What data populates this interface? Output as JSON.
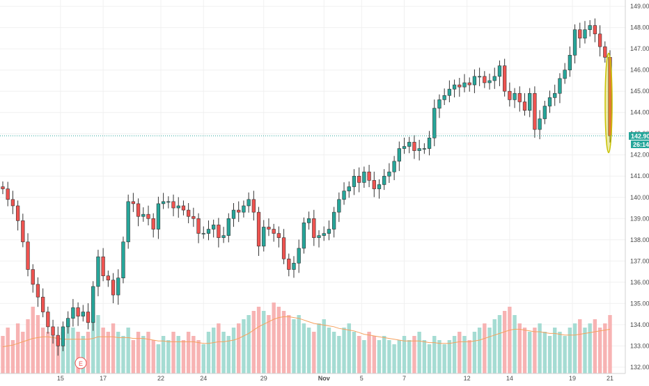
{
  "chart_data": {
    "type": "candlestick",
    "y_range": [
      131.7,
      149.3
    ],
    "y_ticks": [
      "132.00",
      "133.00",
      "134.00",
      "135.00",
      "136.00",
      "137.00",
      "138.00",
      "139.00",
      "140.00",
      "141.00",
      "142.00",
      "143.00",
      "144.00",
      "145.00",
      "146.00",
      "147.00",
      "148.00",
      "149.00"
    ],
    "x_ticks": [
      "15",
      "17",
      "22",
      "24",
      "29",
      "Nov",
      "5",
      "7",
      "12",
      "14",
      "19",
      "21"
    ],
    "current_price": "142.90",
    "countdown": "26:14",
    "earnings_marker": "E",
    "colors": {
      "up": "#26a69a",
      "down": "#ef5350",
      "volume_up": "#a5dcd3",
      "volume_down": "#f7b3b3",
      "ma_line": "#f5a05c",
      "price_line": "#26a69a",
      "highlight": "#c8c200"
    },
    "closes": [
      140.4,
      139.9,
      139.6,
      138.9,
      137.9,
      136.6,
      135.9,
      135.3,
      134.6,
      133.9,
      133.5,
      133.0,
      133.9,
      134.3,
      134.8,
      134.4,
      134.6,
      134.1,
      135.8,
      137.2,
      136.3,
      136.1,
      135.4,
      136.2,
      137.9,
      139.8,
      139.7,
      139.1,
      139.2,
      139.0,
      138.5,
      139.7,
      139.8,
      139.8,
      139.5,
      139.6,
      139.4,
      139.1,
      139.0,
      138.3,
      138.3,
      138.5,
      138.7,
      138.1,
      138.2,
      139.0,
      139.4,
      139.3,
      139.6,
      139.9,
      139.3,
      137.7,
      138.6,
      138.5,
      138.3,
      138.1,
      137.1,
      136.6,
      136.9,
      137.6,
      138.8,
      139.0,
      138.1,
      138.2,
      138.3,
      138.5,
      139.3,
      139.9,
      140.3,
      140.5,
      141.0,
      140.7,
      141.2,
      140.8,
      140.4,
      140.6,
      141.0,
      141.2,
      141.7,
      142.3,
      142.4,
      142.6,
      142.2,
      142.3,
      142.3,
      142.8,
      144.2,
      144.6,
      144.8,
      145.1,
      145.3,
      145.2,
      145.4,
      145.3,
      145.7,
      145.7,
      145.4,
      145.5,
      145.7,
      146.2,
      145.0,
      144.6,
      144.9,
      144.5,
      144.1,
      144.9,
      143.2,
      143.7,
      144.3,
      144.7,
      144.9,
      145.6,
      146.0,
      146.7,
      147.9,
      147.5,
      147.9,
      148.1,
      147.7,
      147.1,
      146.6,
      142.9
    ],
    "opens": [
      140.5,
      140.4,
      139.9,
      139.6,
      138.9,
      137.9,
      136.6,
      135.9,
      135.3,
      134.6,
      133.9,
      133.5,
      133.0,
      133.9,
      134.3,
      134.8,
      134.4,
      134.6,
      134.1,
      135.8,
      137.2,
      136.3,
      136.1,
      135.4,
      136.2,
      137.9,
      139.8,
      139.7,
      139.1,
      139.2,
      139.0,
      138.5,
      139.7,
      139.8,
      139.8,
      139.5,
      139.6,
      139.4,
      139.1,
      139.0,
      138.3,
      138.3,
      138.5,
      138.7,
      138.1,
      138.2,
      139.0,
      139.4,
      139.3,
      139.6,
      139.9,
      139.3,
      137.7,
      138.6,
      138.5,
      138.3,
      138.1,
      137.1,
      136.6,
      136.9,
      137.6,
      138.8,
      139.0,
      138.1,
      138.2,
      138.3,
      138.5,
      139.3,
      139.9,
      140.3,
      140.5,
      141.0,
      140.7,
      141.2,
      140.8,
      140.4,
      140.6,
      141.0,
      141.2,
      141.7,
      142.3,
      142.4,
      142.6,
      142.2,
      142.3,
      142.3,
      142.8,
      144.2,
      144.6,
      144.8,
      145.1,
      145.3,
      145.2,
      145.4,
      145.3,
      145.7,
      145.7,
      145.4,
      145.5,
      145.7,
      146.2,
      145.0,
      144.6,
      144.9,
      144.5,
      144.1,
      144.9,
      143.2,
      143.7,
      144.3,
      144.7,
      144.9,
      145.6,
      146.0,
      146.7,
      147.9,
      147.5,
      147.9,
      148.1,
      147.7,
      147.1,
      146.6
    ],
    "volumes": [
      0.45,
      0.55,
      0.4,
      0.6,
      0.5,
      0.65,
      0.8,
      0.7,
      0.55,
      0.5,
      0.45,
      0.4,
      0.5,
      0.6,
      0.55,
      0.5,
      0.45,
      0.5,
      0.65,
      0.7,
      0.55,
      0.5,
      0.6,
      0.5,
      0.45,
      0.55,
      0.4,
      0.5,
      0.45,
      0.5,
      0.4,
      0.35,
      0.45,
      0.4,
      0.5,
      0.45,
      0.4,
      0.5,
      0.45,
      0.4,
      0.35,
      0.5,
      0.55,
      0.6,
      0.5,
      0.45,
      0.55,
      0.6,
      0.65,
      0.7,
      0.75,
      0.8,
      0.75,
      0.7,
      0.85,
      0.8,
      0.75,
      0.7,
      0.65,
      0.7,
      0.6,
      0.55,
      0.5,
      0.6,
      0.65,
      0.55,
      0.5,
      0.45,
      0.55,
      0.6,
      0.5,
      0.45,
      0.4,
      0.5,
      0.45,
      0.4,
      0.45,
      0.4,
      0.35,
      0.4,
      0.45,
      0.4,
      0.45,
      0.5,
      0.4,
      0.35,
      0.45,
      0.4,
      0.35,
      0.4,
      0.45,
      0.5,
      0.45,
      0.4,
      0.5,
      0.55,
      0.6,
      0.55,
      0.65,
      0.7,
      0.75,
      0.8,
      0.7,
      0.6,
      0.55,
      0.5,
      0.55,
      0.6,
      0.5,
      0.45,
      0.55,
      0.5,
      0.45,
      0.55,
      0.6,
      0.65,
      0.55,
      0.6,
      0.65,
      0.55,
      0.6,
      0.7
    ],
    "ma_values": [
      0.32,
      0.33,
      0.34,
      0.36,
      0.38,
      0.4,
      0.42,
      0.43,
      0.44,
      0.44,
      0.43,
      0.42,
      0.41,
      0.41,
      0.41,
      0.41,
      0.41,
      0.41,
      0.42,
      0.44,
      0.44,
      0.44,
      0.44,
      0.43,
      0.43,
      0.43,
      0.42,
      0.42,
      0.42,
      0.41,
      0.4,
      0.39,
      0.39,
      0.38,
      0.38,
      0.38,
      0.38,
      0.38,
      0.38,
      0.37,
      0.36,
      0.36,
      0.37,
      0.38,
      0.38,
      0.39,
      0.4,
      0.42,
      0.45,
      0.48,
      0.52,
      0.56,
      0.59,
      0.62,
      0.65,
      0.67,
      0.68,
      0.68,
      0.67,
      0.66,
      0.64,
      0.62,
      0.6,
      0.59,
      0.58,
      0.57,
      0.56,
      0.54,
      0.53,
      0.52,
      0.51,
      0.49,
      0.47,
      0.46,
      0.45,
      0.44,
      0.43,
      0.42,
      0.41,
      0.4,
      0.39,
      0.39,
      0.39,
      0.39,
      0.38,
      0.37,
      0.37,
      0.36,
      0.36,
      0.36,
      0.37,
      0.38,
      0.38,
      0.38,
      0.39,
      0.4,
      0.42,
      0.44,
      0.46,
      0.48,
      0.5,
      0.52,
      0.53,
      0.53,
      0.52,
      0.51,
      0.5,
      0.5,
      0.49,
      0.48,
      0.48,
      0.47,
      0.46,
      0.46,
      0.46,
      0.47,
      0.48,
      0.49,
      0.5,
      0.51,
      0.52,
      0.53
    ]
  }
}
